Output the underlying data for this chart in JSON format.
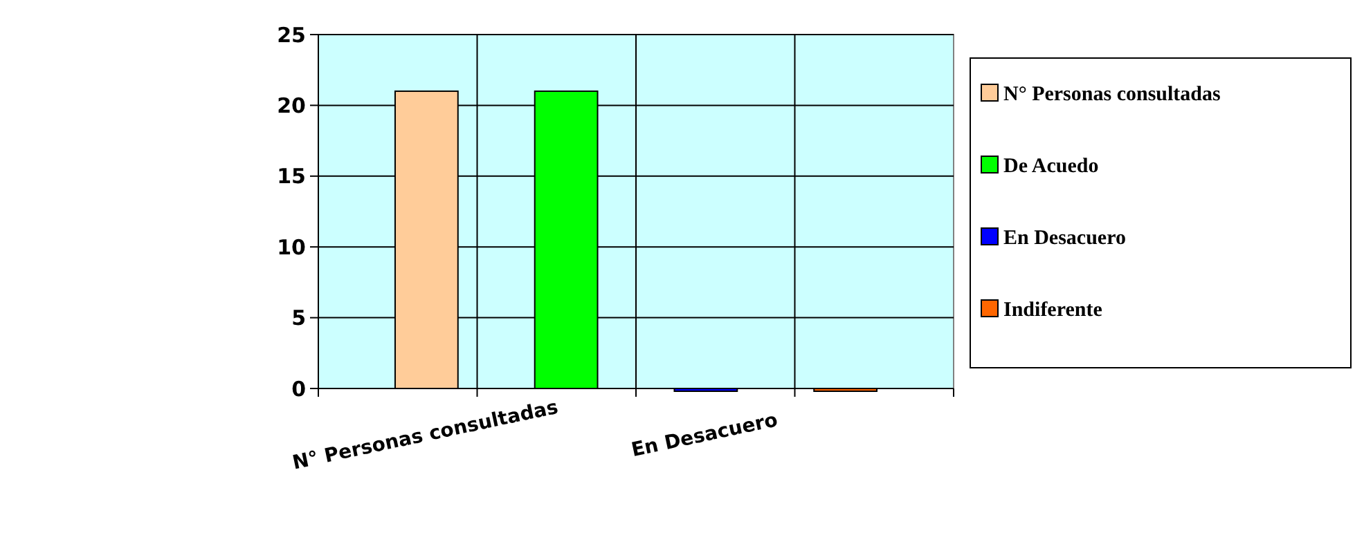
{
  "chart_data": {
    "type": "bar",
    "categories": [
      "N° Personas consultadas",
      null,
      "En Desacuero",
      null
    ],
    "series": [
      {
        "name": "N° Personas consultadas",
        "color": "#ffcc99",
        "values": [
          21,
          null,
          null,
          null
        ]
      },
      {
        "name": "De Acuedo",
        "color": "#00ff00",
        "values": [
          null,
          21,
          null,
          null
        ]
      },
      {
        "name": "En Desacuero",
        "color": "#0000ff",
        "values": [
          null,
          null,
          0,
          null
        ]
      },
      {
        "name": "Indiferente",
        "color": "#ff6600",
        "values": [
          null,
          null,
          null,
          0
        ]
      }
    ],
    "stacked": true,
    "ylim": [
      0,
      25
    ],
    "yticks": [
      0,
      5,
      10,
      15,
      20,
      25
    ],
    "grid": true,
    "legend": "right"
  }
}
